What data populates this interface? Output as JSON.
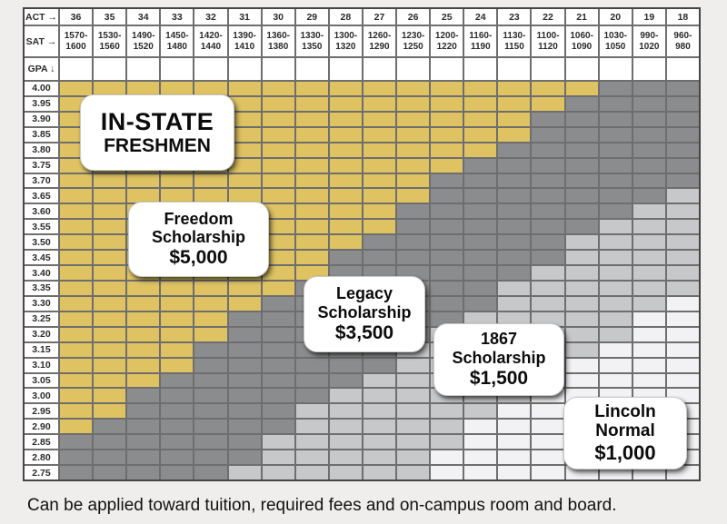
{
  "chart_data": {
    "type": "heatmap",
    "title": "IN-STATE FRESHMEN scholarship grid (GPA vs ACT/SAT)",
    "corner_labels": {
      "act": "ACT →",
      "sat": "SAT →",
      "gpa": "GPA ↓"
    },
    "columns_act": [
      36,
      35,
      34,
      33,
      32,
      31,
      30,
      29,
      28,
      27,
      26,
      25,
      24,
      23,
      22,
      21,
      20,
      19,
      18
    ],
    "columns_sat": [
      [
        "1570-",
        "1600"
      ],
      [
        "1530-",
        "1560"
      ],
      [
        "1490-",
        "1520"
      ],
      [
        "1450-",
        "1480"
      ],
      [
        "1420-",
        "1440"
      ],
      [
        "1390-",
        "1410"
      ],
      [
        "1360-",
        "1380"
      ],
      [
        "1330-",
        "1350"
      ],
      [
        "1300-",
        "1320"
      ],
      [
        "1260-",
        "1290"
      ],
      [
        "1230-",
        "1250"
      ],
      [
        "1200-",
        "1220"
      ],
      [
        "1160-",
        "1190"
      ],
      [
        "1130-",
        "1150"
      ],
      [
        "1100-",
        "1120"
      ],
      [
        "1060-",
        "1090"
      ],
      [
        "1030-",
        "1050"
      ],
      [
        "990-",
        "1020"
      ],
      [
        "960-",
        "980"
      ]
    ],
    "tiers": {
      "gold": {
        "label": "Freedom Scholarship",
        "amount": "$5,000",
        "color": "#dfc363"
      },
      "dark": {
        "label": "Legacy Scholarship",
        "amount": "$3,500",
        "color": "#8b8c8e"
      },
      "medium": {
        "label": "1867 Scholarship",
        "amount": "$1,500",
        "color": "#c7c8ca"
      },
      "light": {
        "label": "Lincoln Normal",
        "amount": "$1,000",
        "color": "#f2f2f4"
      }
    },
    "row_bands": [
      {
        "gpa": "4.00",
        "gold_min_act": 21,
        "medium_max_act": null,
        "light_max_act": null
      },
      {
        "gpa": "3.95",
        "gold_min_act": 22,
        "medium_max_act": null,
        "light_max_act": null
      },
      {
        "gpa": "3.90",
        "gold_min_act": 23,
        "medium_max_act": null,
        "light_max_act": null
      },
      {
        "gpa": "3.85",
        "gold_min_act": 23,
        "medium_max_act": null,
        "light_max_act": null
      },
      {
        "gpa": "3.80",
        "gold_min_act": 24,
        "medium_max_act": null,
        "light_max_act": null
      },
      {
        "gpa": "3.75",
        "gold_min_act": 25,
        "medium_max_act": null,
        "light_max_act": null
      },
      {
        "gpa": "3.70",
        "gold_min_act": 26,
        "medium_max_act": null,
        "light_max_act": null
      },
      {
        "gpa": "3.65",
        "gold_min_act": 26,
        "medium_max_act": 18,
        "light_max_act": null
      },
      {
        "gpa": "3.60",
        "gold_min_act": 27,
        "medium_max_act": 19,
        "light_max_act": null
      },
      {
        "gpa": "3.55",
        "gold_min_act": 27,
        "medium_max_act": 20,
        "light_max_act": null
      },
      {
        "gpa": "3.50",
        "gold_min_act": 28,
        "medium_max_act": 21,
        "light_max_act": null
      },
      {
        "gpa": "3.45",
        "gold_min_act": 29,
        "medium_max_act": 21,
        "light_max_act": null
      },
      {
        "gpa": "3.40",
        "gold_min_act": 29,
        "medium_max_act": 22,
        "light_max_act": null
      },
      {
        "gpa": "3.35",
        "gold_min_act": 30,
        "medium_max_act": 23,
        "light_max_act": null
      },
      {
        "gpa": "3.30",
        "gold_min_act": 31,
        "medium_max_act": 23,
        "light_max_act": 18
      },
      {
        "gpa": "3.25",
        "gold_min_act": 32,
        "medium_max_act": 24,
        "light_max_act": 19
      },
      {
        "gpa": "3.20",
        "gold_min_act": 32,
        "medium_max_act": 25,
        "light_max_act": 19
      },
      {
        "gpa": "3.15",
        "gold_min_act": 33,
        "medium_max_act": 26,
        "light_max_act": 20
      },
      {
        "gpa": "3.10",
        "gold_min_act": 33,
        "medium_max_act": 26,
        "light_max_act": 21
      },
      {
        "gpa": "3.05",
        "gold_min_act": 34,
        "medium_max_act": 27,
        "light_max_act": 22
      },
      {
        "gpa": "3.00",
        "gold_min_act": 35,
        "medium_max_act": 28,
        "light_max_act": 22
      },
      {
        "gpa": "2.95",
        "gold_min_act": 35,
        "medium_max_act": 29,
        "light_max_act": 23
      },
      {
        "gpa": "2.90",
        "gold_min_act": 36,
        "medium_max_act": 29,
        "light_max_act": 24
      },
      {
        "gpa": "2.85",
        "gold_min_act": null,
        "medium_max_act": 30,
        "light_max_act": 24
      },
      {
        "gpa": "2.80",
        "gold_min_act": null,
        "medium_max_act": 30,
        "light_max_act": 25
      },
      {
        "gpa": "2.75",
        "gold_min_act": null,
        "medium_max_act": 31,
        "light_max_act": 25
      }
    ],
    "legend_position": "overlaid callout boxes",
    "grid": "on"
  },
  "callouts": [
    {
      "name": "in-state-freshmen",
      "lines": [
        "IN-STATE",
        "FRESHMEN"
      ]
    },
    {
      "name": "freedom-scholarship",
      "lines": [
        "Freedom",
        "Scholarship",
        "$5,000"
      ]
    },
    {
      "name": "legacy-scholarship",
      "lines": [
        "Legacy",
        "Scholarship",
        "$3,500"
      ]
    },
    {
      "name": "1867-scholarship",
      "lines": [
        "1867",
        "Scholarship",
        "$1,500"
      ]
    },
    {
      "name": "lincoln-normal",
      "lines": [
        "Lincoln",
        "Normal",
        "$1,000"
      ]
    }
  ],
  "caption": "Can be applied toward tuition, required fees and on-campus room and board."
}
